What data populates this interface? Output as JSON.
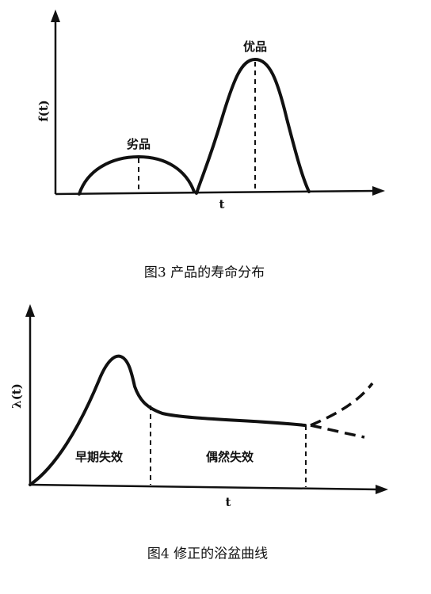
{
  "figure3": {
    "y_label": "f(t)",
    "x_label": "t",
    "low_label": "劣品",
    "high_label": "优品",
    "caption": "图3 产品的寿命分布"
  },
  "figure4": {
    "y_label": "λ(t)",
    "x_label": "t",
    "early_label": "早期失效",
    "random_label": "偶然失效",
    "caption": "图4 修正的浴盆曲线"
  }
}
